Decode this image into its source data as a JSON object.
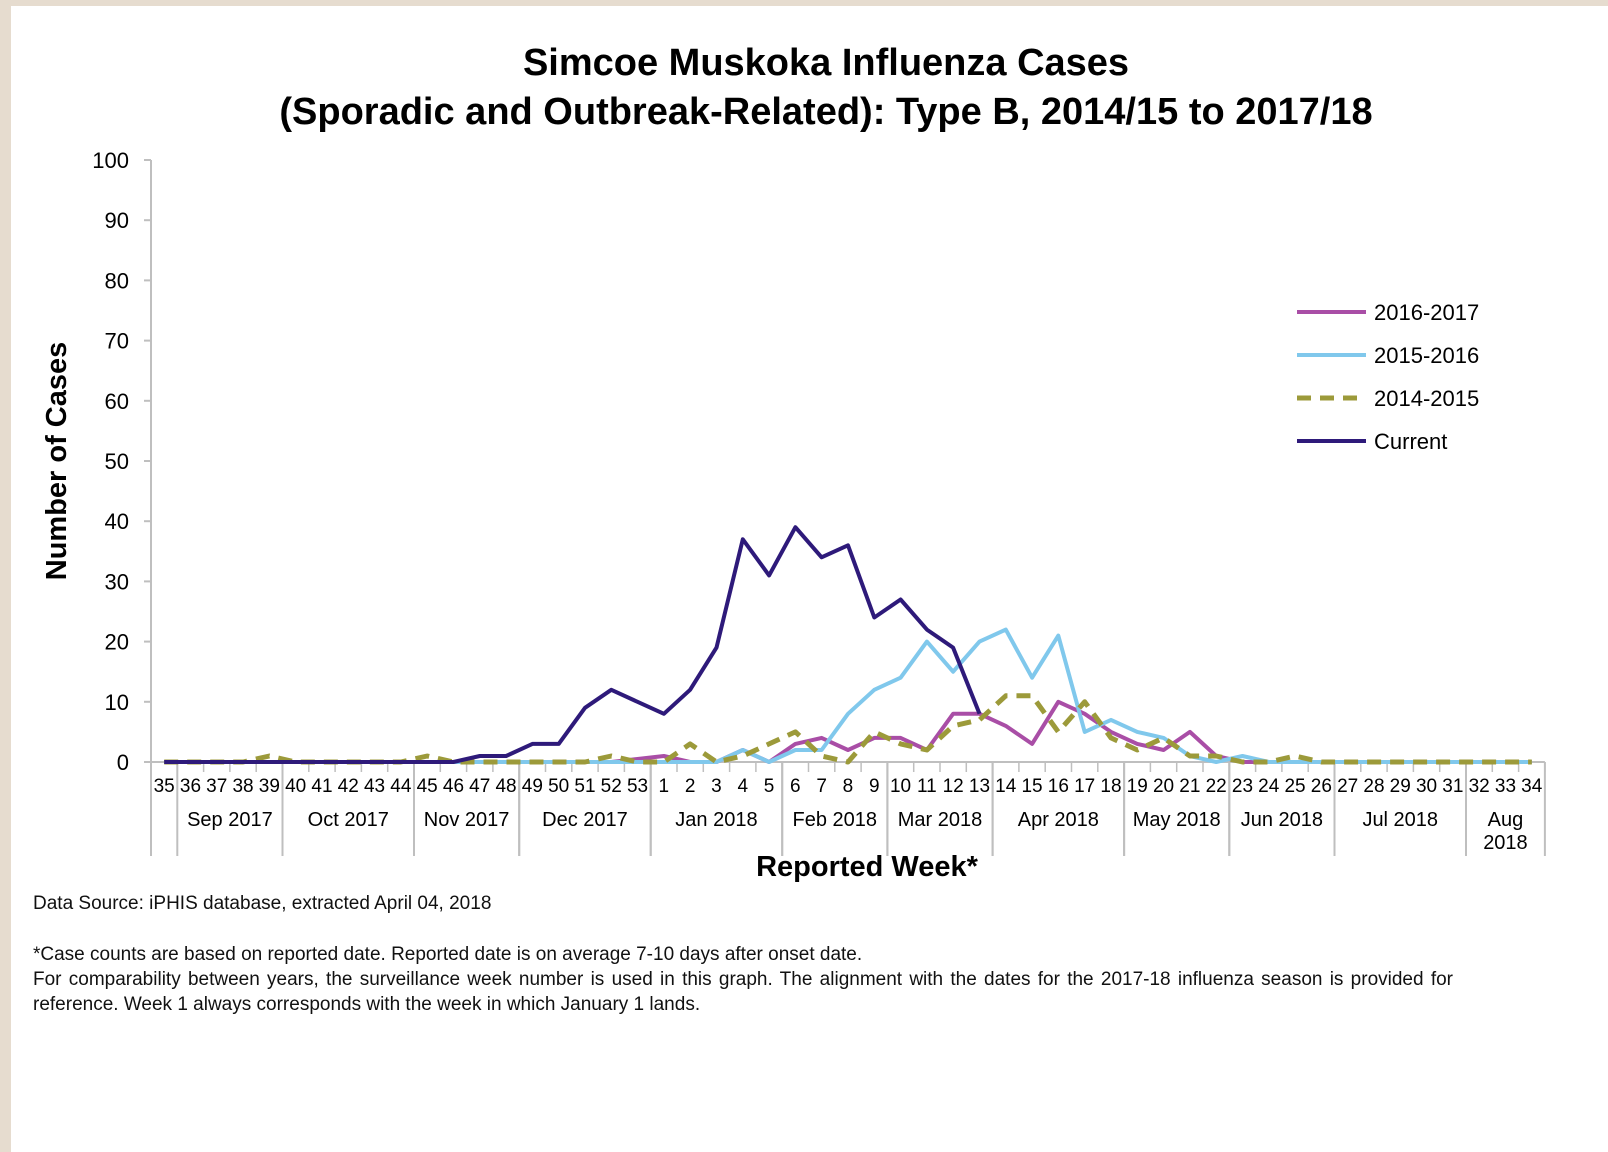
{
  "chart_data": {
    "type": "line",
    "title": [
      "Simcoe Muskoka Influenza Cases",
      "(Sporadic and Outbreak-Related): Type B, 2014/15 to 2017/18"
    ],
    "y_label": "Number of Cases",
    "x_label": "Reported Week*",
    "categories": [
      "35",
      "36",
      "37",
      "38",
      "39",
      "40",
      "41",
      "42",
      "43",
      "44",
      "45",
      "46",
      "47",
      "48",
      "49",
      "50",
      "51",
      "52",
      "53",
      "1",
      "2",
      "3",
      "4",
      "5",
      "6",
      "7",
      "8",
      "9",
      "10",
      "11",
      "12",
      "13",
      "14",
      "15",
      "16",
      "17",
      "18",
      "19",
      "20",
      "21",
      "22",
      "23",
      "24",
      "25",
      "26",
      "27",
      "28",
      "29",
      "30",
      "31",
      "32",
      "33",
      "34"
    ],
    "month_groups": [
      {
        "label": "Sep 2017",
        "from": "36",
        "to": "39"
      },
      {
        "label": "Oct 2017",
        "from": "40",
        "to": "44"
      },
      {
        "label": "Nov 2017",
        "from": "45",
        "to": "48"
      },
      {
        "label": "Dec 2017",
        "from": "49",
        "to": "53"
      },
      {
        "label": "Jan 2018",
        "from": "1",
        "to": "5"
      },
      {
        "label": "Feb 2018",
        "from": "6",
        "to": "9"
      },
      {
        "label": "Mar 2018",
        "from": "10",
        "to": "13"
      },
      {
        "label": "Apr 2018",
        "from": "14",
        "to": "18"
      },
      {
        "label": "May 2018",
        "from": "19",
        "to": "22"
      },
      {
        "label": "Jun 2018",
        "from": "23",
        "to": "26"
      },
      {
        "label": "Jul 2018",
        "from": "27",
        "to": "31"
      },
      {
        "label": "Aug\n2018",
        "from": "32",
        "to": "34"
      }
    ],
    "series": [
      {
        "name": "2016-2017",
        "color": "#a94ea6",
        "dashed": false,
        "values": [
          0,
          0,
          0,
          0,
          0,
          0,
          0,
          0,
          0,
          0,
          0,
          0,
          0,
          0,
          0,
          0,
          0,
          0,
          0.5,
          1,
          0,
          0,
          2,
          0,
          3,
          4,
          2,
          4,
          4,
          2,
          8,
          8,
          6,
          3,
          10,
          8,
          5,
          3,
          2,
          5,
          1,
          0,
          0,
          0,
          0,
          0,
          0,
          0,
          0,
          0,
          0,
          0,
          0
        ]
      },
      {
        "name": "2015-2016",
        "color": "#80c8ec",
        "dashed": false,
        "values": [
          0,
          0,
          0,
          0,
          0,
          0,
          0,
          0,
          0,
          0,
          0,
          0,
          0,
          0,
          0,
          0,
          0,
          0,
          0,
          0,
          0,
          0,
          2,
          0,
          2,
          2,
          8,
          12,
          14,
          20,
          15,
          20,
          22,
          14,
          21,
          5,
          7,
          5,
          4,
          1,
          0,
          1,
          0,
          0,
          0,
          0,
          0,
          0,
          0,
          0,
          0,
          0,
          0
        ]
      },
      {
        "name": "2014-2015",
        "color": "#9c9a3a",
        "dashed": true,
        "values": [
          0,
          0,
          0,
          0,
          1,
          0,
          0,
          0,
          0,
          0,
          1,
          0,
          0,
          0,
          0,
          0,
          0,
          1,
          0,
          0,
          3,
          0,
          1,
          3,
          5,
          1,
          0,
          5,
          3,
          2,
          6,
          7,
          11,
          11,
          5,
          10,
          4,
          2,
          4,
          1,
          1,
          0,
          0,
          1,
          0,
          0,
          0,
          0,
          0,
          0,
          0,
          0,
          0
        ]
      },
      {
        "name": "Current",
        "color": "#2e1a7a",
        "dashed": false,
        "values": [
          0,
          0,
          0,
          0,
          0,
          0,
          0,
          0,
          0,
          0,
          0,
          0,
          1,
          1,
          3,
          3,
          9,
          12,
          10,
          8,
          12,
          19,
          37,
          31,
          39,
          34,
          36,
          24,
          27,
          22,
          19,
          8,
          null,
          null,
          null,
          null,
          null,
          null,
          null,
          null,
          null,
          null,
          null,
          null,
          null,
          null,
          null,
          null,
          null,
          null,
          null,
          null,
          null
        ]
      }
    ],
    "ylim": [
      0,
      100
    ],
    "yticks": [
      0,
      10,
      20,
      30,
      40,
      50,
      60,
      70,
      80,
      90,
      100
    ],
    "legend": "right",
    "source": "Data Source: iPHIS database, extracted April 04, 2018",
    "notes": [
      "*Case counts are based on reported date. Reported date is on average 7-10 days after onset date.",
      "For comparability between years, the surveillance week number is used in this graph. The alignment with the dates for the 2017-18 influenza season is provided for reference. Week 1 always corresponds with the week in which January 1 lands."
    ]
  }
}
